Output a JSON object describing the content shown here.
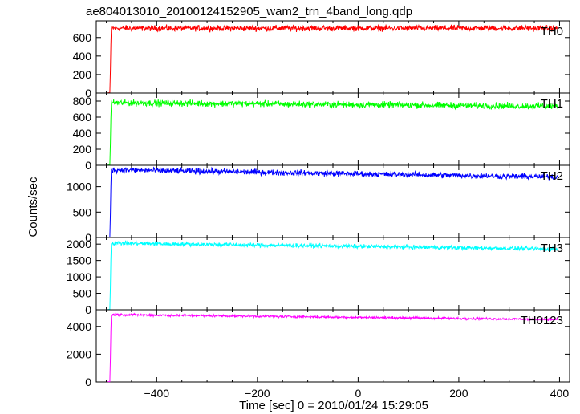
{
  "chart_data": {
    "type": "line",
    "title": "ae804013010_20100124152905_wam2_trn_4band_long.qdp",
    "xlabel": "Time [sec] 0 = 2010/01/24 15:29:05",
    "ylabel": "Counts/sec",
    "xlim": [
      -520,
      420
    ],
    "x_ticks": [
      -400,
      -200,
      0,
      200,
      400
    ],
    "grid": false,
    "onset_time": -490,
    "span": [
      -497,
      397
    ],
    "series": [
      {
        "name": "TH0",
        "color": "#ff0000",
        "ylim": [
          0,
          780
        ],
        "y_ticks": [
          0,
          200,
          400,
          600
        ],
        "level_start": 700,
        "level_end": 700,
        "noise": 22
      },
      {
        "name": "TH1",
        "color": "#00ff00",
        "ylim": [
          0,
          900
        ],
        "y_ticks": [
          0,
          200,
          400,
          600,
          800
        ],
        "level_start": 780,
        "level_end": 735,
        "noise": 28
      },
      {
        "name": "TH2",
        "color": "#0000ff",
        "ylim": [
          0,
          1420
        ],
        "y_ticks": [
          0,
          500,
          1000
        ],
        "level_start": 1330,
        "level_end": 1190,
        "noise": 40
      },
      {
        "name": "TH3",
        "color": "#00ffff",
        "ylim": [
          0,
          2200
        ],
        "y_ticks": [
          0,
          500,
          1000,
          1500,
          2000
        ],
        "level_start": 2030,
        "level_end": 1850,
        "noise": 45
      },
      {
        "name": "TH0123",
        "color": "#ff00ff",
        "ylim": [
          0,
          5200
        ],
        "y_ticks": [
          0,
          2000,
          4000
        ],
        "level_start": 4850,
        "level_end": 4500,
        "noise": 60
      }
    ]
  }
}
